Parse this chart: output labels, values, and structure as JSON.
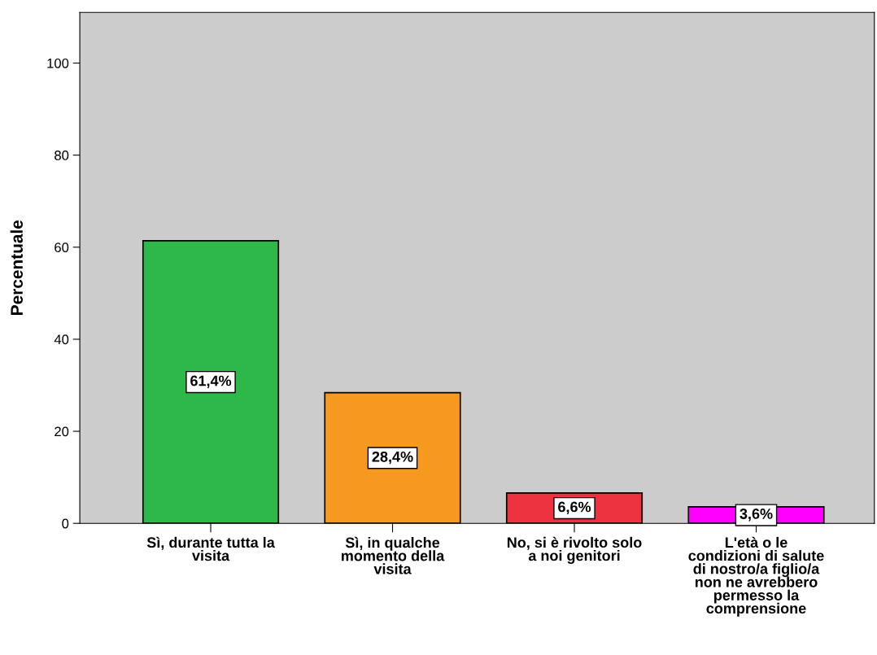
{
  "chart_data": {
    "type": "bar",
    "ylabel": "Percentuale",
    "categories": [
      "Sì, durante tutta la\nvisita",
      "Sì, in qualche\nmomento della\nvisita",
      "No, si è rivolto solo\na noi genitori",
      "L'età o le\ncondizioni di salute\ndi nostro/a figlio/a\nnon ne avrebbero\npermesso la\ncomprensione"
    ],
    "values": [
      61.4,
      28.4,
      6.6,
      3.6
    ],
    "colors": [
      "#2eb84a",
      "#f7991f",
      "#ee3340",
      "#ff00ff"
    ],
    "value_labels": [
      "61,4%",
      "28,4%",
      "6,6%",
      "3,6%"
    ],
    "ylim": [
      0,
      111
    ],
    "yticks": [
      0,
      20,
      40,
      60,
      80,
      100
    ],
    "grid": false,
    "legend": false
  }
}
